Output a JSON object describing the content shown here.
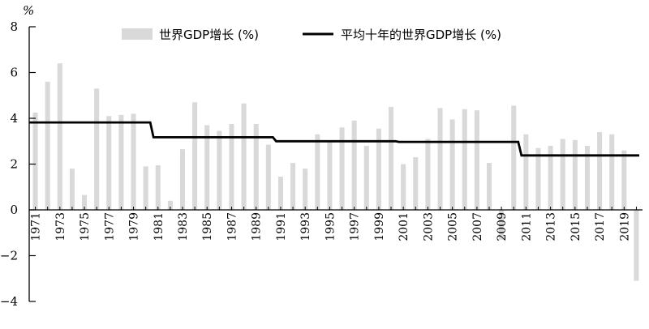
{
  "chart_data": {
    "type": "bar",
    "ylabel": "%",
    "ylim": [
      -4,
      8
    ],
    "yticks": [
      "-4",
      "-2",
      "0",
      "2",
      "4",
      "6",
      "8"
    ],
    "grid": false,
    "legend": "top",
    "x": [
      1971,
      1972,
      1973,
      1974,
      1975,
      1976,
      1977,
      1978,
      1979,
      1980,
      1981,
      1982,
      1983,
      1984,
      1985,
      1986,
      1987,
      1988,
      1989,
      1990,
      1991,
      1992,
      1993,
      1994,
      1995,
      1996,
      1997,
      1998,
      1999,
      2000,
      2001,
      2002,
      2003,
      2004,
      2005,
      2006,
      2007,
      2008,
      2009,
      2010,
      2011,
      2012,
      2013,
      2014,
      2015,
      2016,
      2017,
      2018,
      2019,
      2020
    ],
    "x_tick_labels": [
      "1971",
      "1973",
      "1975",
      "1977",
      "1979",
      "1981",
      "1983",
      "1985",
      "1987",
      "1989",
      "1991",
      "1993",
      "1995",
      "1997",
      "1999",
      "2001",
      "2003",
      "2005",
      "2007",
      "2009",
      "2011",
      "2013",
      "2015",
      "2017",
      "2019"
    ],
    "series": [
      {
        "name": "世界GDP增长 (%)",
        "kind": "bar",
        "color": "#d9d9d9",
        "values": [
          4.25,
          5.6,
          6.4,
          1.8,
          0.65,
          5.3,
          4.1,
          4.15,
          4.2,
          1.9,
          1.95,
          0.4,
          2.65,
          4.7,
          3.7,
          3.45,
          3.75,
          4.65,
          3.75,
          2.85,
          1.45,
          2.05,
          1.8,
          3.3,
          3.0,
          3.6,
          3.9,
          2.8,
          3.55,
          4.5,
          2.0,
          2.3,
          3.1,
          4.45,
          3.95,
          4.4,
          4.35,
          2.05,
          -1.3,
          4.55,
          3.3,
          2.7,
          2.8,
          3.1,
          3.05,
          2.8,
          3.4,
          3.3,
          2.6,
          -3.1
        ]
      },
      {
        "name": "平均十年的世界GDP增长 (%)",
        "kind": "step-line",
        "color": "#000000",
        "segments": [
          {
            "from": 1971,
            "to": 1980,
            "value": 3.82
          },
          {
            "from": 1981,
            "to": 1990,
            "value": 3.17
          },
          {
            "from": 1991,
            "to": 2000,
            "value": 3.0
          },
          {
            "from": 2001,
            "to": 2010,
            "value": 2.97
          },
          {
            "from": 2011,
            "to": 2020,
            "value": 2.38
          }
        ]
      }
    ]
  }
}
